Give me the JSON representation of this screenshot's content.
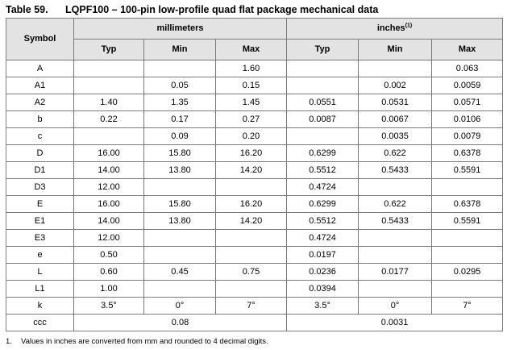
{
  "caption": {
    "table_number": "Table 59.",
    "title": "LQPF100 – 100-pin low-profile quad flat package mechanical data"
  },
  "header": {
    "symbol": "Symbol",
    "mm_group": "millimeters",
    "inch_group": "inches",
    "inch_footnote_ref": "(1)",
    "cols": [
      "Typ",
      "Min",
      "Max",
      "Typ",
      "Min",
      "Max"
    ]
  },
  "rows": [
    [
      "A",
      "",
      "",
      "1.60",
      "",
      "",
      "0.063"
    ],
    [
      "A1",
      "",
      "0.05",
      "0.15",
      "",
      "0.002",
      "0.0059"
    ],
    [
      "A2",
      "1.40",
      "1.35",
      "1.45",
      "0.0551",
      "0.0531",
      "0.0571"
    ],
    [
      "b",
      "0.22",
      "0.17",
      "0.27",
      "0.0087",
      "0.0067",
      "0.0106"
    ],
    [
      "c",
      "",
      "0.09",
      "0.20",
      "",
      "0.0035",
      "0.0079"
    ],
    [
      "D",
      "16.00",
      "15.80",
      "16.20",
      "0.6299",
      "0.622",
      "0.6378"
    ],
    [
      "D1",
      "14.00",
      "13.80",
      "14.20",
      "0.5512",
      "0.5433",
      "0.5591"
    ],
    [
      "D3",
      "12.00",
      "",
      "",
      "0.4724",
      "",
      ""
    ],
    [
      "E",
      "16.00",
      "15.80",
      "16.20",
      "0.6299",
      "0.622",
      "0.6378"
    ],
    [
      "E1",
      "14.00",
      "13.80",
      "14.20",
      "0.5512",
      "0.5433",
      "0.5591"
    ],
    [
      "E3",
      "12.00",
      "",
      "",
      "0.4724",
      "",
      ""
    ],
    [
      "e",
      "0.50",
      "",
      "",
      "0.0197",
      "",
      ""
    ],
    [
      "L",
      "0.60",
      "0.45",
      "0.75",
      "0.0236",
      "0.0177",
      "0.0295"
    ],
    [
      "L1",
      "1.00",
      "",
      "",
      "0.0394",
      "",
      ""
    ],
    [
      "k",
      "3.5°",
      "0°",
      "7°",
      "3.5°",
      "0°",
      "7°"
    ]
  ],
  "ccc_row": {
    "symbol": "ccc",
    "mm_value": "0.08",
    "inch_value": "0.0031"
  },
  "footnote": {
    "number": "1.",
    "text": "Values in inches are converted from mm and rounded to 4 decimal digits."
  }
}
